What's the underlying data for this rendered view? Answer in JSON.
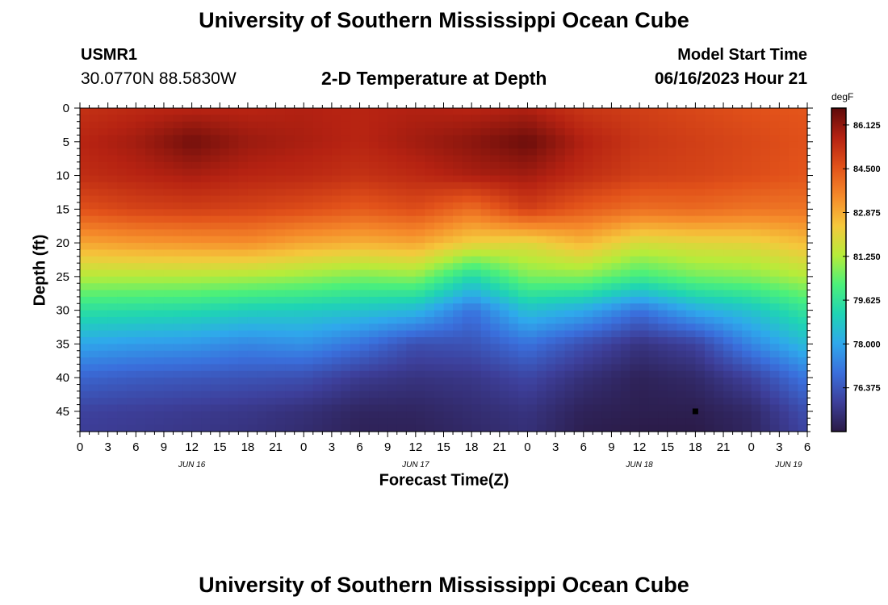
{
  "header": {
    "title": "University of Southern Mississippi Ocean Cube",
    "station_id": "USMR1",
    "coordinates": "30.0770N  88.5830W",
    "subtitle": "2-D Temperature at Depth",
    "model_start_label": "Model Start Time",
    "model_start_value": "06/16/2023 Hour 21"
  },
  "footer": {
    "title": "University of Southern Mississippi Ocean Cube"
  },
  "chart_data": {
    "type": "heatmap",
    "title": "2-D Temperature at Depth",
    "xlabel": "Forecast Time(Z)",
    "ylabel": "Depth (ft)",
    "x_ticks": [
      "0",
      "3",
      "6",
      "9",
      "12",
      "15",
      "18",
      "21",
      "0",
      "3",
      "6",
      "9",
      "12",
      "15",
      "18",
      "21",
      "0",
      "3",
      "6",
      "9",
      "12",
      "15",
      "18",
      "21",
      "0",
      "3",
      "6"
    ],
    "x_hours_range": [
      0,
      78
    ],
    "day_labels": [
      {
        "label": "JUN 16",
        "hour": 12
      },
      {
        "label": "JUN 17",
        "hour": 36
      },
      {
        "label": "JUN 18",
        "hour": 60
      },
      {
        "label": "JUN 19",
        "hour": 76
      }
    ],
    "y_ticks": [
      "0",
      "5",
      "10",
      "15",
      "20",
      "25",
      "30",
      "35",
      "40",
      "45"
    ],
    "y_range": [
      0,
      48
    ],
    "colorbar": {
      "unit": "degF",
      "min": 74.75,
      "max": 86.75,
      "tick_labels": [
        "86.125",
        "84.500",
        "82.875",
        "81.250",
        "79.625",
        "78.000",
        "76.375"
      ],
      "tick_values": [
        86.125,
        84.5,
        82.875,
        81.25,
        79.625,
        78.0,
        76.375
      ],
      "colors": [
        "#2a1a45",
        "#3d3f9a",
        "#3a6fdc",
        "#2fa8ec",
        "#1fd4b4",
        "#4cf07a",
        "#b6ec3a",
        "#f5c83c",
        "#f58a2a",
        "#e2521a",
        "#b52212",
        "#5e0a0a"
      ]
    },
    "control_hours": [
      0,
      6,
      12,
      18,
      24,
      30,
      36,
      42,
      48,
      54,
      60,
      66,
      72,
      78
    ],
    "control_depths": [
      0,
      5,
      10,
      15,
      20,
      25,
      30,
      35,
      40,
      45,
      48
    ],
    "temperatures_degF": [
      [
        85.3,
        85.5,
        85.6,
        85.6,
        85.7,
        85.6,
        85.7,
        85.6,
        85.7,
        85.2,
        85.0,
        84.8,
        84.6,
        84.5
      ],
      [
        85.6,
        85.9,
        86.5,
        86.0,
        85.8,
        85.6,
        85.9,
        86.2,
        86.6,
        85.7,
        85.2,
        85.0,
        84.8,
        84.6
      ],
      [
        85.4,
        85.6,
        85.8,
        85.6,
        85.5,
        85.3,
        85.5,
        85.8,
        85.9,
        85.4,
        85.0,
        84.9,
        84.7,
        84.5
      ],
      [
        84.6,
        84.9,
        85.0,
        84.9,
        84.7,
        84.4,
        84.7,
        84.0,
        85.0,
        84.4,
        84.0,
        84.1,
        83.9,
        83.9
      ],
      [
        83.0,
        83.2,
        83.3,
        83.4,
        83.0,
        82.8,
        83.0,
        82.2,
        82.0,
        82.7,
        81.8,
        82.0,
        82.1,
        82.6
      ],
      [
        81.3,
        81.3,
        81.3,
        81.2,
        81.0,
        80.7,
        80.9,
        79.3,
        80.7,
        80.8,
        80.0,
        80.6,
        80.8,
        81.3
      ],
      [
        79.5,
        79.4,
        79.3,
        79.0,
        78.9,
        78.7,
        78.4,
        77.0,
        78.6,
        78.1,
        77.0,
        78.1,
        78.7,
        79.7
      ],
      [
        78.0,
        77.8,
        77.7,
        77.4,
        77.6,
        77.0,
        76.2,
        76.3,
        77.0,
        76.2,
        75.5,
        75.9,
        77.4,
        78.5
      ],
      [
        76.7,
        76.5,
        76.4,
        76.3,
        76.2,
        75.7,
        75.5,
        75.6,
        76.0,
        75.4,
        75.0,
        75.2,
        75.9,
        77.1
      ],
      [
        75.9,
        75.8,
        75.7,
        75.6,
        75.4,
        75.1,
        75.1,
        75.3,
        75.5,
        75.0,
        74.9,
        74.9,
        75.2,
        76.2
      ],
      [
        75.8,
        75.7,
        75.6,
        75.5,
        75.3,
        75.0,
        75.0,
        75.2,
        75.4,
        74.9,
        74.8,
        74.8,
        75.1,
        76.0
      ]
    ],
    "marker": {
      "hour": 66,
      "depth": 45
    }
  }
}
